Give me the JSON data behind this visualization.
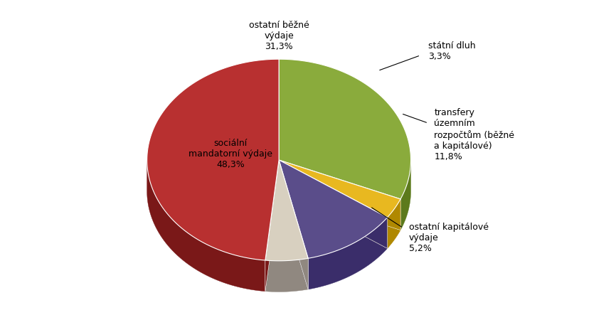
{
  "slices": [
    {
      "label": "ostatní běžné\nvýdaje\n31,3%",
      "value": 31.3,
      "color": "#8aab3c",
      "shadow_color": "#5c7a1c"
    },
    {
      "label": "státní dluh\n3,3%",
      "value": 3.3,
      "color": "#e8b820",
      "shadow_color": "#b08800"
    },
    {
      "label": "transfery\núzemním\nrozpočtům (běžné\na kapitálové)\n11,8%",
      "value": 11.8,
      "color": "#5a4d8a",
      "shadow_color": "#3a2d6a"
    },
    {
      "label": "ostatní kapitálové\nvýdaje\n5,2%",
      "value": 5.2,
      "color": "#d8d0c0",
      "shadow_color": "#908880"
    },
    {
      "label": "sociální\nmandatorní výdaje\n48,3%",
      "value": 48.3,
      "color": "#b83030",
      "shadow_color": "#7a1818"
    }
  ],
  "background_color": "#ffffff",
  "figure_width": 8.66,
  "figure_height": 4.5,
  "dpi": 100,
  "startangle": 90,
  "label_font_size": 9
}
